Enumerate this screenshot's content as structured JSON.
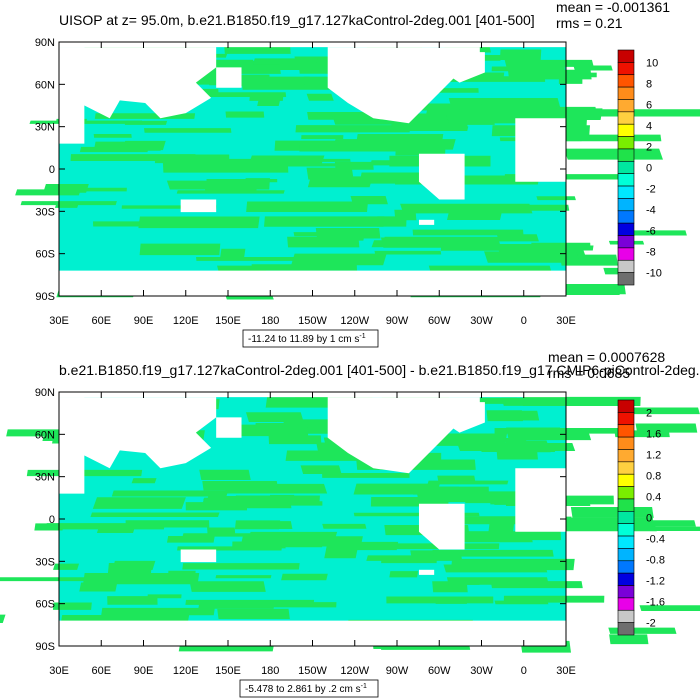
{
  "panels": [
    {
      "id": "top",
      "title": "UISOP at z=  95.0m, b.e21.B1850.f19_g17.127kaControl-2deg.001 [401-500]",
      "mean": "mean = -0.001361",
      "rms": "rms = 0.21",
      "range_label": "-11.24 to 11.89 by 1 cm s",
      "range_sup": "-1",
      "colorbar": {
        "labels": [
          "10",
          "8",
          "6",
          "4",
          "2",
          "0",
          "-2",
          "-4",
          "-6",
          "-8",
          "-10"
        ],
        "colors": [
          "#c80000",
          "#ee1100",
          "#ff5500",
          "#ff8c1a",
          "#ffaa30",
          "#ffd040",
          "#ffff00",
          "#7aee00",
          "#20e24a",
          "#00e8a0",
          "#00ffd8",
          "#00e8ff",
          "#00b4ff",
          "#0078ff",
          "#0000e0",
          "#7a00d8",
          "#e800e8",
          "#c8c8c8",
          "#6e6e6e"
        ]
      }
    },
    {
      "id": "bottom",
      "title": "b.e21.B1850.f19_g17.127kaControl-2deg.001 [401-500] - b.e21.B1850.f19_g17.CMIP6-piControl-2deg.0",
      "mean": "mean = 0.0007628",
      "rms": "rms = 0.0685",
      "range_label": "-5.478 to 2.861 by .2 cm s",
      "range_sup": "-1",
      "colorbar": {
        "labels": [
          "2",
          "1.6",
          "1.2",
          "0.8",
          "0.4",
          "0",
          "-0.4",
          "-0.8",
          "-1.2",
          "-1.6",
          "-2"
        ],
        "colors": [
          "#c80000",
          "#ee1100",
          "#ff5500",
          "#ff8c1a",
          "#ffaa30",
          "#ffd040",
          "#ffff00",
          "#7aee00",
          "#20e24a",
          "#00e8a0",
          "#00ffd8",
          "#00e8ff",
          "#00b4ff",
          "#0078ff",
          "#0000e0",
          "#7a00d8",
          "#e800e8",
          "#c8c8c8",
          "#6e6e6e"
        ]
      }
    }
  ],
  "lat_labels": [
    "90N",
    "60N",
    "30N",
    "0",
    "30S",
    "60S",
    "90S"
  ],
  "lon_labels": [
    "30E",
    "60E",
    "90E",
    "120E",
    "150E",
    "180",
    "150W",
    "120W",
    "90W",
    "60W",
    "30W",
    "0",
    "30E"
  ],
  "map_colors": {
    "ocean_a": "#00f0d0",
    "ocean_b": "#1ee65a",
    "land": "#ffffff"
  }
}
